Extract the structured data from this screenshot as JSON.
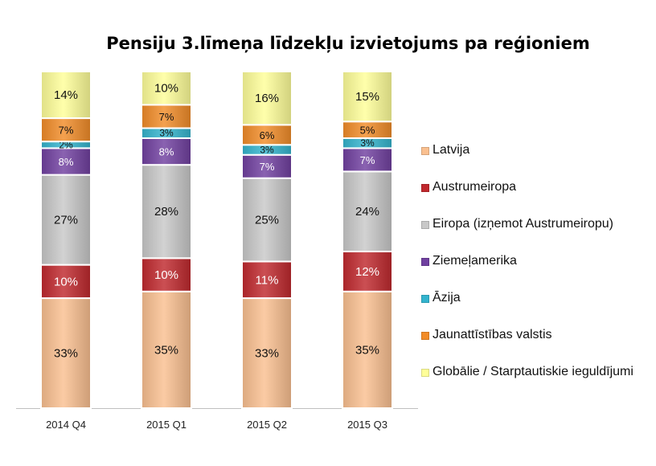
{
  "chart_data": {
    "type": "bar",
    "stacked": true,
    "title": "Pensiju 3.līmeņa līdzekļu izvietojums pa reģioniem",
    "xlabel": "",
    "ylabel": "",
    "categories": [
      "2014 Q4",
      "2015 Q1",
      "2015 Q2",
      "2015 Q3"
    ],
    "legend_position": "right",
    "grid": false,
    "series": [
      {
        "name": "Latvija",
        "color": "#FAC090",
        "values": [
          33,
          35,
          33,
          35
        ],
        "labels": [
          "33%",
          "35%",
          "33%",
          "35%"
        ]
      },
      {
        "name": "Austrumeiropa",
        "color": "#C0282D",
        "values": [
          10,
          10,
          11,
          12
        ],
        "labels": [
          "10%",
          "10%",
          "11%",
          "12%"
        ]
      },
      {
        "name": "Eiropa (izņemot Austrumeiropu)",
        "color": "#C8C8C8",
        "values": [
          27,
          28,
          25,
          24
        ],
        "labels": [
          "27%",
          "28%",
          "25%",
          "24%"
        ]
      },
      {
        "name": "Ziemeļamerika",
        "color": "#7040A0",
        "values": [
          8,
          8,
          7,
          7
        ],
        "labels": [
          "8%",
          "8%",
          "7%",
          "7%"
        ]
      },
      {
        "name": "Āzija",
        "color": "#33B4CE",
        "values": [
          2,
          3,
          3,
          3
        ],
        "labels": [
          "2%",
          "3%",
          "3%",
          "3%"
        ]
      },
      {
        "name": "Jaunattīstības valstis",
        "color": "#F28C28",
        "values": [
          7,
          7,
          6,
          5
        ],
        "labels": [
          "7%",
          "7%",
          "6%",
          "5%"
        ]
      },
      {
        "name": "Globālie / Starptautiskie ieguldījumi",
        "color": "#FFFF99",
        "values": [
          14,
          10,
          16,
          15
        ],
        "labels": [
          "14%",
          "10%",
          "16%",
          "15%"
        ]
      }
    ]
  }
}
